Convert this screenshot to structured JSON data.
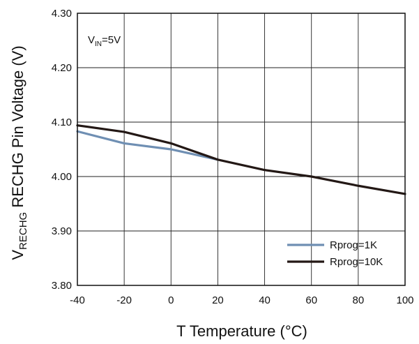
{
  "chart_data": {
    "type": "line",
    "title": "",
    "xlabel": "T Temperature (°C)",
    "ylabel": {
      "main": "V",
      "subscript": "RECHG",
      "rest": " RECHG Pin Voltage (V)"
    },
    "annotation": {
      "main": "V",
      "subscript": "IN",
      "rest": "=5V"
    },
    "xlim": [
      -40,
      100
    ],
    "ylim": [
      3.8,
      4.3
    ],
    "xticks": [
      "-40",
      "-20",
      "0",
      "20",
      "40",
      "60",
      "80",
      "100"
    ],
    "yticks": [
      "3.80",
      "3.90",
      "4.00",
      "4.10",
      "4.20",
      "4.30"
    ],
    "grid": true,
    "legend_position": "bottom-right",
    "series": [
      {
        "name": "Rprog=1K",
        "color": "#6f8fb3",
        "x": [
          -40,
          -20,
          0,
          20
        ],
        "y": [
          4.083,
          4.061,
          4.05,
          4.031
        ]
      },
      {
        "name": "Rprog=10K",
        "color": "#231815",
        "x": [
          -40,
          -20,
          0,
          20,
          40,
          60,
          80,
          100
        ],
        "y": [
          4.094,
          4.082,
          4.061,
          4.031,
          4.012,
          4.0,
          3.983,
          3.968
        ]
      }
    ]
  }
}
